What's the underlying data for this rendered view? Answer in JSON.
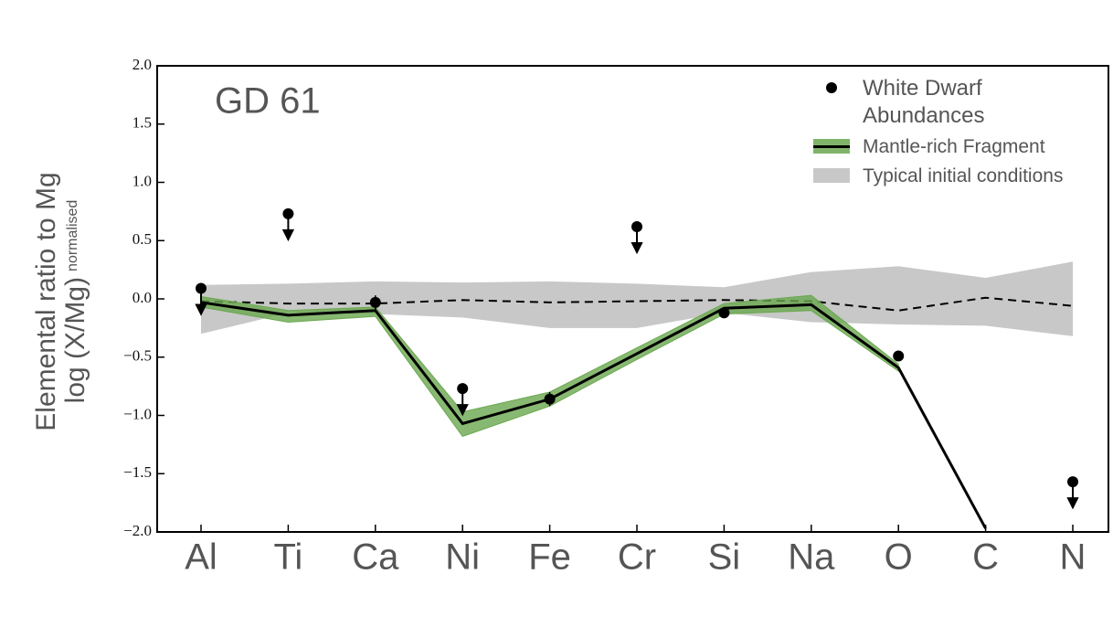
{
  "chart_data": {
    "type": "line",
    "annotation": "GD 61",
    "y_label": "Elemental ratio to Mg",
    "y_label_2": "log (X/Mg)",
    "y_label_2_sub": "normalised",
    "categories": [
      "Al",
      "Ti",
      "Ca",
      "Ni",
      "Fe",
      "Cr",
      "Si",
      "Na",
      "O",
      "C",
      "N"
    ],
    "ylim": [
      -2,
      2
    ],
    "yticks": [
      {
        "value": 2,
        "label": "2.0"
      },
      {
        "value": 1.5,
        "label": "1.5"
      },
      {
        "value": 1,
        "label": "1.0"
      },
      {
        "value": 0.5,
        "label": "0.5"
      },
      {
        "value": 0,
        "label": "0.0"
      },
      {
        "value": -0.5,
        "label": "−0.5"
      },
      {
        "value": -1,
        "label": "−1.0"
      },
      {
        "value": -1.5,
        "label": "−1.5"
      },
      {
        "value": -2,
        "label": "−2.0"
      }
    ],
    "legend": "upper right",
    "series": [
      {
        "name": "White Dwarf Abundances",
        "kind": "scatter",
        "color": "#000000",
        "values": [
          0.09,
          0.73,
          -0.03,
          -0.77,
          -0.86,
          0.62,
          -0.12,
          null,
          -0.49,
          null,
          -1.57
        ],
        "errors": [
          null,
          null,
          0.06,
          null,
          0.06,
          null,
          0.03,
          null,
          0.04,
          null,
          null
        ],
        "upper_limit": [
          true,
          true,
          false,
          true,
          false,
          true,
          false,
          false,
          false,
          false,
          true
        ]
      },
      {
        "name": "Mantle-rich Fragment",
        "kind": "band-line",
        "color": "#000000",
        "band_color": "#6aa84f",
        "values": [
          -0.03,
          -0.14,
          -0.1,
          -1.07,
          -0.86,
          -0.47,
          -0.08,
          -0.05,
          -0.59,
          -1.97,
          null
        ],
        "lower": [
          -0.07,
          -0.2,
          -0.15,
          -1.18,
          -0.92,
          -0.52,
          -0.13,
          -0.1,
          -0.62,
          null,
          null
        ],
        "upper": [
          0.02,
          -0.1,
          -0.07,
          -0.97,
          -0.8,
          -0.42,
          -0.04,
          0.03,
          -0.56,
          null,
          null
        ]
      },
      {
        "name": "Typical initial conditions",
        "kind": "band",
        "color": "#c8c8c8",
        "values": [
          -0.02,
          -0.04,
          -0.04,
          -0.01,
          -0.03,
          -0.02,
          -0.01,
          -0.02,
          -0.1,
          0.01,
          -0.06
        ],
        "lower": [
          -0.3,
          -0.12,
          -0.13,
          -0.16,
          -0.25,
          -0.25,
          -0.12,
          -0.2,
          -0.22,
          -0.23,
          -0.32
        ],
        "upper": [
          0.12,
          0.13,
          0.15,
          0.14,
          0.15,
          0.13,
          0.1,
          0.23,
          0.28,
          0.18,
          0.32
        ]
      }
    ]
  }
}
